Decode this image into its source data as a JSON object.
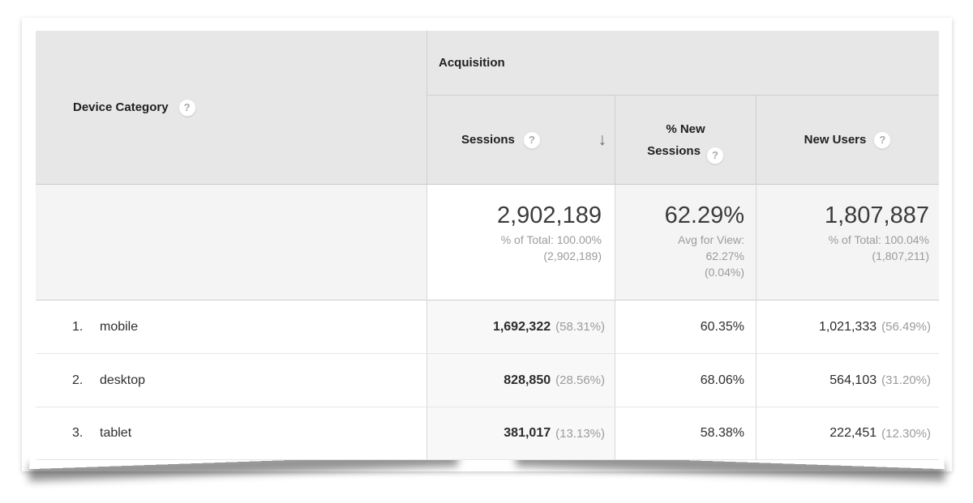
{
  "icons": {
    "help": "?",
    "sort_desc": "↓"
  },
  "colors": {
    "header_bg": "#e7e7e7",
    "summary_bg": "#f4f4f4",
    "sorted_col_bg": "#f8f8f8",
    "border_strong": "#cfcfcf",
    "border_light": "#e6e6e6",
    "text_dark": "#1f1f1f",
    "text_gray": "#9b9b9b"
  },
  "table": {
    "dimension_header": {
      "label": "Device Category"
    },
    "group_header": {
      "label": "Acquisition"
    },
    "columns": {
      "sessions": {
        "label": "Sessions",
        "sort": "descending"
      },
      "new_sessions": {
        "label_line1": "% New",
        "label_line2": "Sessions"
      },
      "new_users": {
        "label": "New Users"
      }
    },
    "summary": {
      "sessions": {
        "value": "2,902,189",
        "sub1": "% of Total: 100.00%",
        "sub2": "(2,902,189)"
      },
      "new_sessions": {
        "value": "62.29%",
        "sub1": "Avg for View:",
        "sub2": "62.27%",
        "sub3": "(0.04%)"
      },
      "new_users": {
        "value": "1,807,887",
        "sub1": "% of Total: 100.04%",
        "sub2": "(1,807,211)"
      }
    },
    "rows": [
      {
        "rank": "1.",
        "device": "mobile",
        "sessions": "1,692,322",
        "sessions_pct": "(58.31%)",
        "new_sessions_pct": "60.35%",
        "new_users": "1,021,333",
        "new_users_pct": "(56.49%)"
      },
      {
        "rank": "2.",
        "device": "desktop",
        "sessions": "828,850",
        "sessions_pct": "(28.56%)",
        "new_sessions_pct": "68.06%",
        "new_users": "564,103",
        "new_users_pct": "(31.20%)"
      },
      {
        "rank": "3.",
        "device": "tablet",
        "sessions": "381,017",
        "sessions_pct": "(13.13%)",
        "new_sessions_pct": "58.38%",
        "new_users": "222,451",
        "new_users_pct": "(12.30%)"
      }
    ]
  }
}
